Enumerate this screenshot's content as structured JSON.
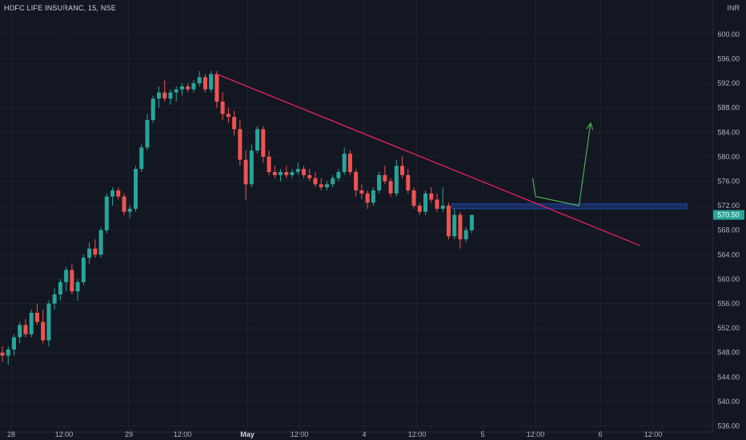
{
  "header": {
    "title": "HDFC LIFE INSURANC, 15, NSE"
  },
  "axis": {
    "currency": "INR"
  },
  "price_tag": {
    "value": "570.50",
    "color": "#26a69a"
  },
  "colors": {
    "up": "#26a69a",
    "down": "#ef5350",
    "trendline": "#e91e63",
    "arrow": "#4caf50",
    "zone": "#2962ff"
  },
  "chart_data": {
    "type": "candlestick",
    "title": "HDFC LIFE INSURANC, 15, NSE",
    "ylim": [
      534,
      604
    ],
    "yticks": [
      536,
      540,
      544,
      548,
      552,
      556,
      560,
      564,
      568,
      572,
      576,
      580,
      584,
      588,
      592,
      596,
      600
    ],
    "xticks": [
      {
        "label": "28",
        "bold": false
      },
      {
        "label": "12:00",
        "bold": false
      },
      {
        "label": "29",
        "bold": false
      },
      {
        "label": "12:00",
        "bold": false
      },
      {
        "label": "May",
        "bold": true
      },
      {
        "label": "12:00",
        "bold": false
      },
      {
        "label": "4",
        "bold": false
      },
      {
        "label": "12:00",
        "bold": false
      },
      {
        "label": "5",
        "bold": false
      },
      {
        "label": "12:00",
        "bold": false
      },
      {
        "label": "6",
        "bold": false
      },
      {
        "label": "12:00",
        "bold": false
      }
    ],
    "last_price": 570.5,
    "candles": [
      [
        548.0,
        549.0,
        546.5,
        547.5
      ],
      [
        547.5,
        549.0,
        546.0,
        548.5
      ],
      [
        548.5,
        551.0,
        547.5,
        550.5
      ],
      [
        550.5,
        553.0,
        549.5,
        552.5
      ],
      [
        552.5,
        553.5,
        550.5,
        551.0
      ],
      [
        551.0,
        555.0,
        550.5,
        554.5
      ],
      [
        554.5,
        556.0,
        552.5,
        553.0
      ],
      [
        553.0,
        555.0,
        549.5,
        550.0
      ],
      [
        550.0,
        556.5,
        549.0,
        556.0
      ],
      [
        556.0,
        558.5,
        555.0,
        557.5
      ],
      [
        557.5,
        560.0,
        556.5,
        559.5
      ],
      [
        559.5,
        562.0,
        558.0,
        561.5
      ],
      [
        561.5,
        562.5,
        557.5,
        558.0
      ],
      [
        558.0,
        560.0,
        556.5,
        559.5
      ],
      [
        559.5,
        564.0,
        559.0,
        563.5
      ],
      [
        563.5,
        566.0,
        562.5,
        565.0
      ],
      [
        565.0,
        566.5,
        563.5,
        564.0
      ],
      [
        564.0,
        568.5,
        563.5,
        568.0
      ],
      [
        568.0,
        574.0,
        567.5,
        573.5
      ],
      [
        573.5,
        575.0,
        572.0,
        574.5
      ],
      [
        574.5,
        575.0,
        573.0,
        573.5
      ],
      [
        573.5,
        574.0,
        570.5,
        571.0
      ],
      [
        571.0,
        572.0,
        570.0,
        571.5
      ],
      [
        571.5,
        578.5,
        571.0,
        578.0
      ],
      [
        578.0,
        582.0,
        577.5,
        581.5
      ],
      [
        581.5,
        587.0,
        581.0,
        586.0
      ],
      [
        586.0,
        590.0,
        585.5,
        589.5
      ],
      [
        589.5,
        591.5,
        588.0,
        590.5
      ],
      [
        590.5,
        592.5,
        589.0,
        589.5
      ],
      [
        589.5,
        591.0,
        588.5,
        590.5
      ],
      [
        590.5,
        591.5,
        589.0,
        591.0
      ],
      [
        591.0,
        592.0,
        590.0,
        591.5
      ],
      [
        591.5,
        592.0,
        590.5,
        591.0
      ],
      [
        591.0,
        592.5,
        590.5,
        592.0
      ],
      [
        592.0,
        594.0,
        591.5,
        593.0
      ],
      [
        593.0,
        593.5,
        590.5,
        591.0
      ],
      [
        591.0,
        594.0,
        590.5,
        593.5
      ],
      [
        593.5,
        594.0,
        588.0,
        589.0
      ],
      [
        589.0,
        590.5,
        586.0,
        587.0
      ],
      [
        587.0,
        588.0,
        585.5,
        586.5
      ],
      [
        586.5,
        587.5,
        583.5,
        584.5
      ],
      [
        584.5,
        586.0,
        578.5,
        579.5
      ],
      [
        579.5,
        581.0,
        573.0,
        575.5
      ],
      [
        575.5,
        582.0,
        575.0,
        581.0
      ],
      [
        581.0,
        585.0,
        580.5,
        584.5
      ],
      [
        584.5,
        585.0,
        579.0,
        580.0
      ],
      [
        580.0,
        581.0,
        577.0,
        577.5
      ],
      [
        577.5,
        578.5,
        576.5,
        577.0
      ],
      [
        577.0,
        578.0,
        576.0,
        577.5
      ],
      [
        577.5,
        578.5,
        576.5,
        577.0
      ],
      [
        577.0,
        578.0,
        576.5,
        577.5
      ],
      [
        577.5,
        579.0,
        577.0,
        578.0
      ],
      [
        578.0,
        578.5,
        576.5,
        577.0
      ],
      [
        577.0,
        578.0,
        576.0,
        576.5
      ],
      [
        576.5,
        577.5,
        575.0,
        575.5
      ],
      [
        575.5,
        576.5,
        574.5,
        575.0
      ],
      [
        575.0,
        576.0,
        574.5,
        575.5
      ],
      [
        575.5,
        577.0,
        575.0,
        576.5
      ],
      [
        576.5,
        578.0,
        576.0,
        577.5
      ],
      [
        577.5,
        581.5,
        577.0,
        580.5
      ],
      [
        580.5,
        581.0,
        577.0,
        577.5
      ],
      [
        577.5,
        578.0,
        573.5,
        574.5
      ],
      [
        574.5,
        575.5,
        573.0,
        574.0
      ],
      [
        574.0,
        574.5,
        571.5,
        572.5
      ],
      [
        572.5,
        575.0,
        572.0,
        574.5
      ],
      [
        574.5,
        577.5,
        574.0,
        577.0
      ],
      [
        577.0,
        578.5,
        575.5,
        576.0
      ],
      [
        576.0,
        576.5,
        573.5,
        574.0
      ],
      [
        574.0,
        579.5,
        573.5,
        578.5
      ],
      [
        578.5,
        580.0,
        576.5,
        577.0
      ],
      [
        577.0,
        578.0,
        574.0,
        574.5
      ],
      [
        574.5,
        575.0,
        571.5,
        572.0
      ],
      [
        572.0,
        572.5,
        570.5,
        571.0
      ],
      [
        571.0,
        574.5,
        570.5,
        574.0
      ],
      [
        574.0,
        575.0,
        572.5,
        573.0
      ],
      [
        573.0,
        574.0,
        571.0,
        571.5
      ],
      [
        571.5,
        575.0,
        571.0,
        572.0
      ],
      [
        572.0,
        572.5,
        566.5,
        567.0
      ],
      [
        567.0,
        571.5,
        566.5,
        570.5
      ],
      [
        570.5,
        571.0,
        565.0,
        566.5
      ],
      [
        566.5,
        568.5,
        566.0,
        568.0
      ],
      [
        568.0,
        570.5,
        567.5,
        570.5
      ]
    ],
    "annotations": {
      "trendline": {
        "start": [
          37,
          593.5
        ],
        "end": [
          110,
          565.5
        ]
      },
      "zone": {
        "from_candle": 78,
        "to_x": 121,
        "low": 571.5,
        "high": 572.3
      },
      "arrow_path": [
        [
          91.5,
          576.5
        ],
        [
          92,
          573.5
        ],
        [
          99.5,
          572.0
        ],
        [
          101.5,
          585.5
        ]
      ]
    }
  }
}
